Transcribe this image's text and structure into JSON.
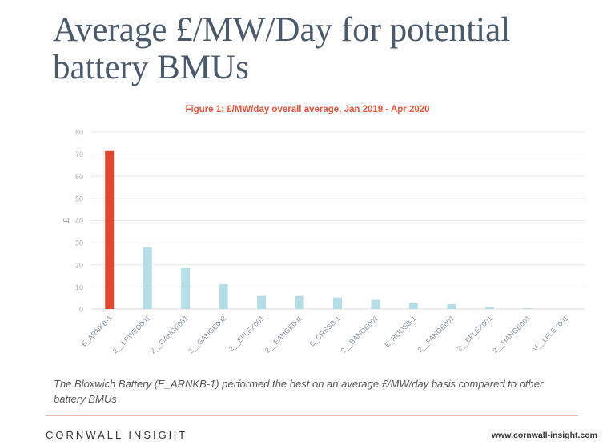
{
  "slide": {
    "title": "Average £/MW/Day for potential battery BMUs",
    "caption": "The Bloxwich Battery (E_ARNKB-1) performed the best on an average £/MW/day basis compared to other battery BMUs",
    "brand": "CORNWALL INSIGHT",
    "url": "www.cornwall-insight.com"
  },
  "colors": {
    "highlight": "#e8432f",
    "bar": "#b5dde6",
    "grid": "#e8e8e8",
    "title": "#4a5a6a",
    "figure_title": "#e8533b"
  },
  "chart_data": {
    "type": "bar",
    "title": "Figure 1: £/MW/day overall average, Jan 2019 - Apr 2020",
    "xlabel": "",
    "ylabel": "£",
    "ylim": [
      0,
      80
    ],
    "yticks": [
      0,
      10,
      20,
      30,
      40,
      50,
      60,
      70,
      80
    ],
    "grid": true,
    "legend": "none",
    "categories": [
      "E_ARNKB-1",
      "2__LRWED001",
      "2__GANGE001",
      "2__GANGE002",
      "2__EFLEX001",
      "2__EANGE001",
      "E_CRSSB-1",
      "2__BANGE001",
      "E_ROOSB-1",
      "2__FANGE001",
      "2__BFLEX001",
      "2__HANGE001",
      "V__LFLEX001"
    ],
    "values": [
      71.4,
      28.0,
      18.5,
      11.2,
      5.9,
      5.9,
      5.2,
      4.1,
      2.6,
      2.1,
      0.8,
      0.4,
      0.0
    ],
    "highlight_index": 0
  }
}
